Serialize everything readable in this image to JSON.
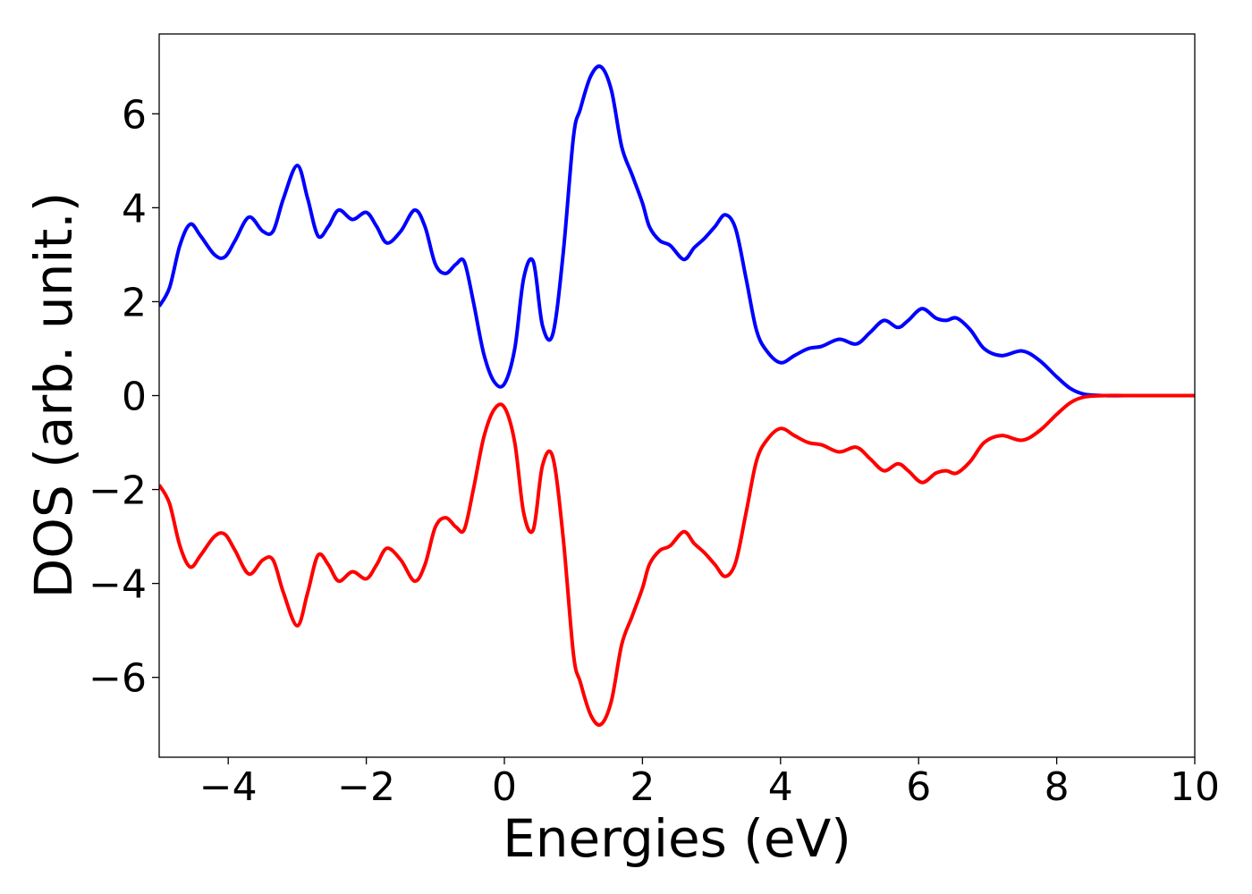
{
  "chart_data": {
    "type": "line",
    "title": "",
    "xlabel": "Energies (eV)",
    "ylabel": "DOS (arb. unit.)",
    "xlim": [
      -5,
      10
    ],
    "ylim": [
      -7.7,
      7.7
    ],
    "xticks": [
      -4,
      -2,
      0,
      2,
      4,
      6,
      8,
      10
    ],
    "xtick_labels": [
      "−4",
      "−2",
      "0",
      "2",
      "4",
      "6",
      "8",
      "10"
    ],
    "yticks": [
      -6,
      -4,
      -2,
      0,
      2,
      4,
      6
    ],
    "ytick_labels": [
      "−6",
      "−4",
      "−2",
      "0",
      "2",
      "4",
      "6"
    ],
    "grid": false,
    "legend": "none",
    "series": [
      {
        "color": "#0000ff",
        "x": [
          -5.0,
          -4.85,
          -4.7,
          -4.55,
          -4.4,
          -4.2,
          -4.05,
          -3.9,
          -3.7,
          -3.5,
          -3.35,
          -3.2,
          -3.0,
          -2.85,
          -2.7,
          -2.55,
          -2.4,
          -2.2,
          -2.0,
          -1.85,
          -1.7,
          -1.5,
          -1.3,
          -1.15,
          -1.0,
          -0.85,
          -0.7,
          -0.58,
          -0.45,
          -0.3,
          -0.15,
          0.0,
          0.15,
          0.28,
          0.42,
          0.55,
          0.7,
          0.85,
          1.0,
          1.1,
          1.25,
          1.4,
          1.55,
          1.7,
          1.85,
          2.0,
          2.1,
          2.25,
          2.4,
          2.6,
          2.75,
          2.9,
          3.05,
          3.2,
          3.35,
          3.5,
          3.65,
          3.8,
          4.0,
          4.2,
          4.4,
          4.6,
          4.85,
          5.1,
          5.3,
          5.5,
          5.7,
          5.85,
          6.05,
          6.25,
          6.4,
          6.55,
          6.75,
          6.95,
          7.2,
          7.5,
          7.75,
          8.0,
          8.2,
          8.4,
          8.7,
          9.0,
          9.5,
          10.0
        ],
        "y": [
          1.9,
          2.3,
          3.2,
          3.65,
          3.4,
          3.0,
          2.95,
          3.3,
          3.8,
          3.5,
          3.5,
          4.2,
          4.9,
          4.2,
          3.4,
          3.6,
          3.95,
          3.75,
          3.9,
          3.6,
          3.25,
          3.5,
          3.95,
          3.6,
          2.8,
          2.6,
          2.8,
          2.85,
          2.0,
          0.9,
          0.3,
          0.25,
          1.0,
          2.5,
          2.85,
          1.5,
          1.3,
          3.0,
          5.5,
          6.1,
          6.8,
          7.0,
          6.5,
          5.3,
          4.7,
          4.1,
          3.6,
          3.3,
          3.2,
          2.9,
          3.15,
          3.35,
          3.6,
          3.85,
          3.55,
          2.5,
          1.4,
          0.95,
          0.7,
          0.85,
          1.0,
          1.05,
          1.2,
          1.1,
          1.35,
          1.6,
          1.45,
          1.6,
          1.85,
          1.65,
          1.6,
          1.65,
          1.4,
          1.0,
          0.85,
          0.95,
          0.75,
          0.4,
          0.15,
          0.03,
          0.0,
          0.0,
          0.0,
          0.0
        ]
      },
      {
        "color": "#ff0000",
        "x": [
          -5.0,
          -4.85,
          -4.7,
          -4.55,
          -4.4,
          -4.2,
          -4.05,
          -3.9,
          -3.7,
          -3.5,
          -3.35,
          -3.2,
          -3.0,
          -2.85,
          -2.7,
          -2.55,
          -2.4,
          -2.2,
          -2.0,
          -1.85,
          -1.7,
          -1.5,
          -1.3,
          -1.15,
          -1.0,
          -0.85,
          -0.7,
          -0.58,
          -0.45,
          -0.3,
          -0.15,
          0.0,
          0.15,
          0.28,
          0.42,
          0.55,
          0.7,
          0.85,
          1.0,
          1.1,
          1.25,
          1.4,
          1.55,
          1.7,
          1.85,
          2.0,
          2.1,
          2.25,
          2.4,
          2.6,
          2.75,
          2.9,
          3.05,
          3.2,
          3.35,
          3.5,
          3.65,
          3.8,
          4.0,
          4.2,
          4.4,
          4.6,
          4.85,
          5.1,
          5.3,
          5.5,
          5.7,
          5.85,
          6.05,
          6.25,
          6.4,
          6.55,
          6.75,
          6.95,
          7.2,
          7.5,
          7.75,
          8.0,
          8.2,
          8.4,
          8.7,
          9.0,
          9.5,
          10.0
        ],
        "y": [
          -1.9,
          -2.3,
          -3.2,
          -3.65,
          -3.4,
          -3.0,
          -2.95,
          -3.3,
          -3.8,
          -3.5,
          -3.5,
          -4.2,
          -4.9,
          -4.2,
          -3.4,
          -3.6,
          -3.95,
          -3.75,
          -3.9,
          -3.6,
          -3.25,
          -3.5,
          -3.95,
          -3.6,
          -2.8,
          -2.6,
          -2.8,
          -2.85,
          -2.0,
          -0.9,
          -0.3,
          -0.25,
          -1.0,
          -2.5,
          -2.85,
          -1.5,
          -1.3,
          -3.0,
          -5.5,
          -6.1,
          -6.8,
          -7.0,
          -6.5,
          -5.3,
          -4.7,
          -4.1,
          -3.6,
          -3.3,
          -3.2,
          -2.9,
          -3.15,
          -3.35,
          -3.6,
          -3.85,
          -3.55,
          -2.5,
          -1.4,
          -0.95,
          -0.7,
          -0.85,
          -1.0,
          -1.05,
          -1.2,
          -1.1,
          -1.35,
          -1.6,
          -1.45,
          -1.6,
          -1.85,
          -1.65,
          -1.6,
          -1.65,
          -1.4,
          -1.0,
          -0.85,
          -0.95,
          -0.75,
          -0.4,
          -0.15,
          -0.03,
          0.0,
          0.0,
          0.0,
          0.0
        ]
      }
    ]
  }
}
